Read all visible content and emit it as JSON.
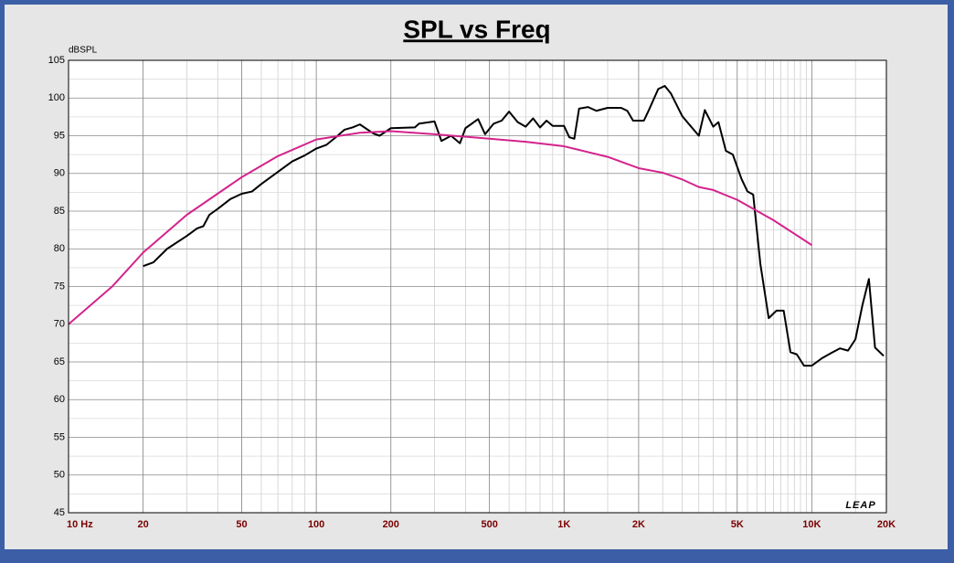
{
  "chart_data": {
    "type": "line",
    "title": "SPL vs Freq",
    "y_axis_label": "dBSPL",
    "watermark": "LEAP",
    "log_x": true,
    "grid": true,
    "xlim": [
      10,
      20000
    ],
    "ylim": [
      45,
      105
    ],
    "xticks": [
      {
        "value": 10,
        "label": "10 Hz"
      },
      20,
      50,
      100,
      200,
      500,
      {
        "value": 1000,
        "label": "1K"
      },
      {
        "value": 2000,
        "label": "2K"
      },
      {
        "value": 5000,
        "label": "5K"
      },
      {
        "value": 10000,
        "label": "10K"
      },
      {
        "value": 20000,
        "label": "20K"
      }
    ],
    "yticks": [
      45,
      50,
      55,
      60,
      65,
      70,
      75,
      80,
      85,
      90,
      95,
      100,
      105
    ],
    "series": [
      {
        "color": "#000000",
        "x": [
          20,
          22,
          25,
          30,
          33,
          35,
          37,
          40,
          45,
          50,
          55,
          60,
          70,
          80,
          90,
          100,
          110,
          120,
          130,
          140,
          150,
          170,
          180,
          200,
          250,
          260,
          300,
          320,
          350,
          380,
          400,
          450,
          480,
          520,
          560,
          600,
          650,
          700,
          750,
          800,
          850,
          900,
          1000,
          1050,
          1100,
          1150,
          1250,
          1350,
          1500,
          1700,
          1800,
          1900,
          2000,
          2100,
          2200,
          2400,
          2550,
          2700,
          3000,
          3200,
          3500,
          3700,
          4000,
          4200,
          4500,
          4800,
          5200,
          5500,
          5800,
          6200,
          6700,
          7200,
          7700,
          8200,
          8700,
          9300,
          10000,
          11000,
          12000,
          13000,
          14000,
          15000,
          16000,
          17000,
          18000,
          19500
        ],
        "values": [
          77.7,
          78.2,
          80,
          81.7,
          82.7,
          83,
          84.5,
          85.3,
          86.6,
          87.3,
          87.6,
          88.6,
          90.2,
          91.6,
          92.4,
          93.3,
          93.8,
          94.8,
          95.8,
          96.1,
          96.5,
          95.3,
          95,
          96,
          96.1,
          96.6,
          96.9,
          94.3,
          95,
          94,
          96,
          97.2,
          95.2,
          96.6,
          97,
          98.2,
          96.8,
          96.2,
          97.3,
          96.1,
          97,
          96.3,
          96.3,
          94.8,
          94.6,
          98.6,
          98.8,
          98.3,
          98.7,
          98.7,
          98.3,
          97,
          97,
          97,
          98.4,
          101.2,
          101.6,
          100.6,
          97.6,
          96.5,
          95,
          98.4,
          96.2,
          96.8,
          93,
          92.5,
          89.3,
          87.6,
          87.2,
          78,
          70.8,
          71.8,
          71.8,
          66.3,
          66,
          64.5,
          64.5,
          65.5,
          66.2,
          66.8,
          66.5,
          68,
          72.5,
          76,
          66.9,
          65.8
        ]
      },
      {
        "color": "#d4238c",
        "x": [
          10,
          15,
          20,
          30,
          50,
          70,
          100,
          150,
          200,
          300,
          500,
          700,
          1000,
          1500,
          2000,
          2500,
          3000,
          3500,
          4000,
          5000,
          7000,
          10000
        ],
        "values": [
          70,
          75,
          79.5,
          84.5,
          89.5,
          92.3,
          94.5,
          95.4,
          95.6,
          95.2,
          94.6,
          94.2,
          93.6,
          92.2,
          90.7,
          90.1,
          89.2,
          88.2,
          87.8,
          86.5,
          83.8,
          80.5
        ]
      }
    ]
  }
}
